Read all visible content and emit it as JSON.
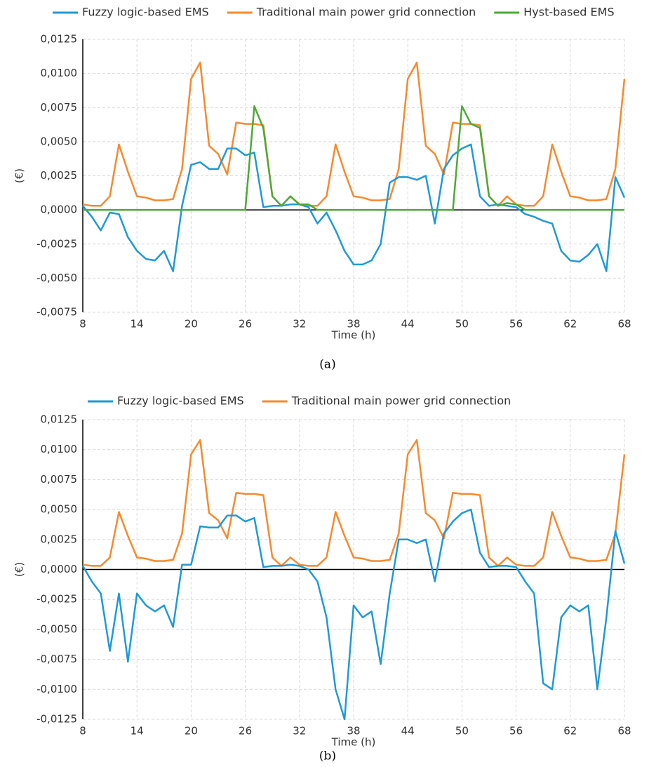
{
  "chart_data": [
    {
      "type": "line",
      "caption": "(a)",
      "x_label": "Time (h)",
      "y_label": "(€)",
      "x": [
        8,
        9,
        10,
        11,
        12,
        13,
        14,
        15,
        16,
        17,
        18,
        19,
        20,
        21,
        22,
        23,
        24,
        25,
        26,
        27,
        28,
        29,
        30,
        31,
        32,
        33,
        34,
        35,
        36,
        37,
        38,
        39,
        40,
        41,
        42,
        43,
        44,
        45,
        46,
        47,
        48,
        49,
        50,
        51,
        52,
        53,
        54,
        55,
        56,
        57,
        58,
        59,
        60,
        61,
        62,
        63,
        64,
        65,
        66,
        67,
        68
      ],
      "series": [
        {
          "name": "Fuzzy logic-based EMS",
          "color": "#1f9ad6",
          "values": [
            0.0003,
            -0.0005,
            -0.0015,
            -0.0002,
            -0.0003,
            -0.002,
            -0.003,
            -0.0036,
            -0.0037,
            -0.003,
            -0.0045,
            0.0003,
            0.0033,
            0.0035,
            0.003,
            0.003,
            0.0045,
            0.0045,
            0.004,
            0.0042,
            0.0002,
            0.0003,
            0.0003,
            0.0004,
            0.0004,
            0.0002,
            -0.001,
            -0.0002,
            -0.0015,
            -0.003,
            -0.004,
            -0.004,
            -0.0037,
            -0.0025,
            0.002,
            0.0024,
            0.0024,
            0.0022,
            0.0025,
            -0.001,
            0.003,
            0.004,
            0.0045,
            0.0048,
            0.001,
            0.0003,
            0.0004,
            0.0003,
            0.0002,
            -0.0003,
            -0.0005,
            -0.0008,
            -0.001,
            -0.003,
            -0.0037,
            -0.0038,
            -0.0033,
            -0.0025,
            -0.0045,
            0.0024,
            0.0009
          ]
        },
        {
          "name": "Traditional main power grid connection",
          "color": "#f58a2e",
          "values": [
            0.0004,
            0.0003,
            0.0003,
            0.001,
            0.0048,
            0.0028,
            0.001,
            0.0009,
            0.0007,
            0.0007,
            0.0008,
            0.003,
            0.0096,
            0.0108,
            0.0047,
            0.0041,
            0.0026,
            0.0064,
            0.0063,
            0.0063,
            0.0062,
            0.001,
            0.0003,
            0.001,
            0.0004,
            0.0003,
            0.0003,
            0.001,
            0.0048,
            0.0028,
            0.001,
            0.0009,
            0.0007,
            0.0007,
            0.0008,
            0.003,
            0.0096,
            0.0108,
            0.0047,
            0.0041,
            0.0026,
            0.0064,
            0.0063,
            0.0063,
            0.0062,
            0.001,
            0.0003,
            0.001,
            0.0004,
            0.0003,
            0.0003,
            0.001,
            0.0048,
            0.0028,
            0.001,
            0.0009,
            0.0007,
            0.0007,
            0.0008,
            0.003,
            0.0096
          ]
        },
        {
          "name": "Hyst-based EMS",
          "color": "#4caa35",
          "values": [
            0,
            0,
            0,
            0,
            0,
            0,
            0,
            0,
            0,
            0,
            0,
            0,
            0,
            0,
            0,
            0,
            0,
            0,
            0,
            0.0076,
            0.006,
            0.001,
            0.0003,
            0.001,
            0.0004,
            0.0004,
            0,
            0,
            0,
            0,
            0,
            0,
            0,
            0,
            0,
            0,
            0,
            0,
            0,
            0,
            0,
            0,
            0.0076,
            0.0063,
            0.006,
            0.001,
            0.0003,
            0.0005,
            0.0004,
            0,
            0,
            0,
            0,
            0,
            0,
            0,
            0,
            0,
            0,
            0,
            0
          ]
        }
      ],
      "xlim": [
        8,
        68
      ],
      "xticks": [
        8,
        14,
        20,
        26,
        32,
        38,
        44,
        50,
        56,
        62,
        68
      ],
      "ylim": [
        -0.0075,
        0.0125
      ],
      "yticks": [
        {
          "value": -0.0075,
          "label": "-0,0075"
        },
        {
          "value": -0.005,
          "label": "-0,0050"
        },
        {
          "value": -0.0025,
          "label": "-0,0025"
        },
        {
          "value": 0,
          "label": "0,0000"
        },
        {
          "value": 0.0025,
          "label": "0,0025"
        },
        {
          "value": 0.005,
          "label": "0,0050"
        },
        {
          "value": 0.0075,
          "label": "0,0075"
        },
        {
          "value": 0.01,
          "label": "0,0100"
        },
        {
          "value": 0.0125,
          "label": "0,0125"
        }
      ],
      "grid": true,
      "legend": "top"
    },
    {
      "type": "line",
      "caption": "(b)",
      "x_label": "Time (h)",
      "y_label": "(€)",
      "x": [
        8,
        9,
        10,
        11,
        12,
        13,
        14,
        15,
        16,
        17,
        18,
        19,
        20,
        21,
        22,
        23,
        24,
        25,
        26,
        27,
        28,
        29,
        30,
        31,
        32,
        33,
        34,
        35,
        36,
        37,
        38,
        39,
        40,
        41,
        42,
        43,
        44,
        45,
        46,
        47,
        48,
        49,
        50,
        51,
        52,
        53,
        54,
        55,
        56,
        57,
        58,
        59,
        60,
        61,
        62,
        63,
        64,
        65,
        66,
        67,
        68
      ],
      "series": [
        {
          "name": "Fuzzy logic-based EMS",
          "color": "#1f9ad6",
          "values": [
            0.0003,
            -0.001,
            -0.002,
            -0.0068,
            -0.002,
            -0.0077,
            -0.002,
            -0.003,
            -0.0035,
            -0.003,
            -0.0048,
            0.0004,
            0.0004,
            0.0036,
            0.0035,
            0.0035,
            0.0045,
            0.0045,
            0.004,
            0.0043,
            0.0002,
            0.0003,
            0.0003,
            0.0004,
            0.0003,
            0,
            -0.001,
            -0.004,
            -0.01,
            -0.0125,
            -0.003,
            -0.004,
            -0.0035,
            -0.0079,
            -0.002,
            0.0025,
            0.0025,
            0.0022,
            0.0025,
            -0.001,
            0.003,
            0.004,
            0.0047,
            0.005,
            0.0014,
            0.0002,
            0.0003,
            0.0003,
            0.0002,
            -0.001,
            -0.002,
            -0.0095,
            -0.01,
            -0.004,
            -0.003,
            -0.0035,
            -0.003,
            -0.01,
            -0.004,
            0.0032,
            0.0005
          ]
        },
        {
          "name": "Traditional main power grid connection",
          "color": "#f58a2e",
          "values": [
            0.0004,
            0.0003,
            0.0003,
            0.001,
            0.0048,
            0.0028,
            0.001,
            0.0009,
            0.0007,
            0.0007,
            0.0008,
            0.003,
            0.0096,
            0.0108,
            0.0047,
            0.0041,
            0.0026,
            0.0064,
            0.0063,
            0.0063,
            0.0062,
            0.001,
            0.0003,
            0.001,
            0.0004,
            0.0003,
            0.0003,
            0.001,
            0.0048,
            0.0028,
            0.001,
            0.0009,
            0.0007,
            0.0007,
            0.0008,
            0.003,
            0.0096,
            0.0108,
            0.0047,
            0.0041,
            0.0026,
            0.0064,
            0.0063,
            0.0063,
            0.0062,
            0.001,
            0.0003,
            0.001,
            0.0004,
            0.0003,
            0.0003,
            0.001,
            0.0048,
            0.0028,
            0.001,
            0.0009,
            0.0007,
            0.0007,
            0.0008,
            0.003,
            0.0096
          ]
        }
      ],
      "xlim": [
        8,
        68
      ],
      "xticks": [
        8,
        14,
        20,
        26,
        32,
        38,
        44,
        50,
        56,
        62,
        68
      ],
      "ylim": [
        -0.0125,
        0.0125
      ],
      "yticks": [
        {
          "value": -0.0125,
          "label": "-0,0125"
        },
        {
          "value": -0.01,
          "label": "-0,0100"
        },
        {
          "value": -0.0075,
          "label": "-0,0075"
        },
        {
          "value": -0.005,
          "label": "-0,0050"
        },
        {
          "value": -0.0025,
          "label": "-0,0025"
        },
        {
          "value": 0,
          "label": "0,0000"
        },
        {
          "value": 0.0025,
          "label": "0,0025"
        },
        {
          "value": 0.005,
          "label": "0,0050"
        },
        {
          "value": 0.0075,
          "label": "0,0075"
        },
        {
          "value": 0.01,
          "label": "0,0100"
        },
        {
          "value": 0.0125,
          "label": "0,0125"
        }
      ],
      "grid": true,
      "legend": "top"
    }
  ]
}
